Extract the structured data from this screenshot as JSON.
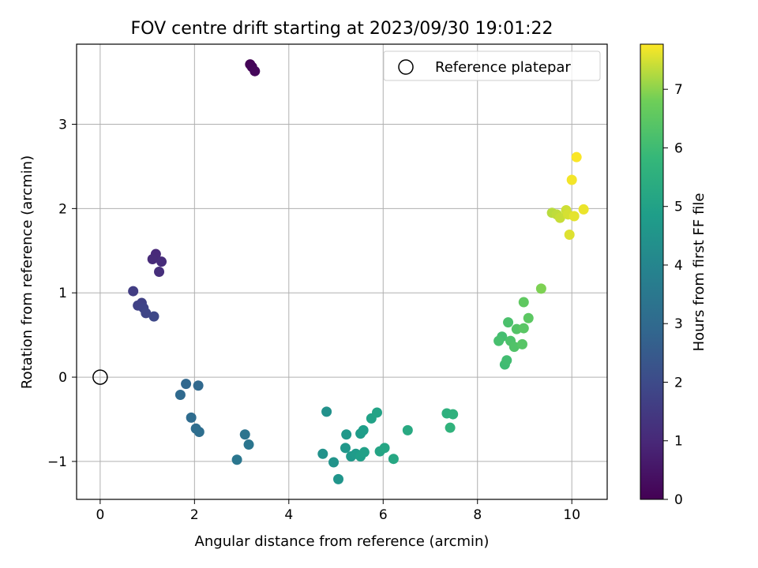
{
  "chart_data": {
    "type": "scatter",
    "title": "FOV centre drift starting at 2023/09/30 19:01:22",
    "xlabel": "Angular distance from reference (arcmin)",
    "ylabel": "Rotation from reference (arcmin)",
    "xlim": [
      -0.5,
      10.75
    ],
    "ylim": [
      -1.45,
      3.95
    ],
    "xticks": [
      0,
      2,
      4,
      6,
      8,
      10
    ],
    "yticks": [
      -1,
      0,
      1,
      2,
      3
    ],
    "xtick_labels": [
      "0",
      "2",
      "4",
      "6",
      "8",
      "10"
    ],
    "ytick_labels": [
      "−1",
      "0",
      "1",
      "2",
      "3"
    ],
    "grid": true,
    "legend": {
      "location": "top-right",
      "entries": [
        "Reference platepar"
      ]
    },
    "reference_point": {
      "x": 0,
      "y": 0
    },
    "colorbar": {
      "label": "Hours from first FF file",
      "colormap": "viridis",
      "range": [
        0,
        7.77
      ],
      "ticks": [
        0,
        1,
        2,
        3,
        4,
        5,
        6,
        7
      ],
      "tick_labels": [
        "0",
        "1",
        "2",
        "3",
        "4",
        "5",
        "6",
        "7"
      ]
    },
    "points": [
      {
        "x": 3.18,
        "y": 3.71,
        "hours": 0.05
      },
      {
        "x": 3.22,
        "y": 3.68,
        "hours": 0.1
      },
      {
        "x": 3.28,
        "y": 3.63,
        "hours": 0.15
      },
      {
        "x": 1.18,
        "y": 1.46,
        "hours": 1.0
      },
      {
        "x": 1.11,
        "y": 1.4,
        "hours": 1.05
      },
      {
        "x": 1.3,
        "y": 1.37,
        "hours": 1.1
      },
      {
        "x": 1.25,
        "y": 1.25,
        "hours": 1.15
      },
      {
        "x": 0.7,
        "y": 1.02,
        "hours": 1.6
      },
      {
        "x": 0.88,
        "y": 0.88,
        "hours": 1.7
      },
      {
        "x": 0.8,
        "y": 0.85,
        "hours": 1.75
      },
      {
        "x": 0.92,
        "y": 0.82,
        "hours": 1.8
      },
      {
        "x": 0.97,
        "y": 0.76,
        "hours": 1.85
      },
      {
        "x": 1.14,
        "y": 0.72,
        "hours": 1.9
      },
      {
        "x": 1.82,
        "y": -0.08,
        "hours": 2.9
      },
      {
        "x": 2.08,
        "y": -0.1,
        "hours": 2.95
      },
      {
        "x": 1.7,
        "y": -0.21,
        "hours": 3.0
      },
      {
        "x": 1.93,
        "y": -0.48,
        "hours": 3.05
      },
      {
        "x": 2.03,
        "y": -0.61,
        "hours": 3.1
      },
      {
        "x": 2.1,
        "y": -0.65,
        "hours": 3.15
      },
      {
        "x": 3.07,
        "y": -0.68,
        "hours": 3.35
      },
      {
        "x": 3.15,
        "y": -0.8,
        "hours": 3.4
      },
      {
        "x": 2.9,
        "y": -0.98,
        "hours": 3.45
      },
      {
        "x": 4.8,
        "y": -0.41,
        "hours": 4.4
      },
      {
        "x": 4.72,
        "y": -0.91,
        "hours": 4.45
      },
      {
        "x": 4.95,
        "y": -1.01,
        "hours": 4.5
      },
      {
        "x": 5.05,
        "y": -1.21,
        "hours": 4.55
      },
      {
        "x": 5.2,
        "y": -0.84,
        "hours": 4.6
      },
      {
        "x": 5.22,
        "y": -0.68,
        "hours": 4.65
      },
      {
        "x": 5.32,
        "y": -0.94,
        "hours": 4.7
      },
      {
        "x": 5.42,
        "y": -0.91,
        "hours": 4.75
      },
      {
        "x": 5.52,
        "y": -0.67,
        "hours": 4.8
      },
      {
        "x": 5.58,
        "y": -0.63,
        "hours": 4.85
      },
      {
        "x": 5.52,
        "y": -0.94,
        "hours": 4.9
      },
      {
        "x": 5.6,
        "y": -0.89,
        "hours": 4.95
      },
      {
        "x": 5.75,
        "y": -0.49,
        "hours": 5.0
      },
      {
        "x": 5.87,
        "y": -0.42,
        "hours": 5.05
      },
      {
        "x": 5.93,
        "y": -0.88,
        "hours": 5.1
      },
      {
        "x": 6.03,
        "y": -0.84,
        "hours": 5.15
      },
      {
        "x": 6.22,
        "y": -0.97,
        "hours": 5.2
      },
      {
        "x": 6.52,
        "y": -0.63,
        "hours": 5.3
      },
      {
        "x": 7.35,
        "y": -0.43,
        "hours": 5.55
      },
      {
        "x": 7.48,
        "y": -0.44,
        "hours": 5.6
      },
      {
        "x": 7.42,
        "y": -0.6,
        "hours": 5.65
      },
      {
        "x": 8.58,
        "y": 0.15,
        "hours": 6.0
      },
      {
        "x": 8.62,
        "y": 0.2,
        "hours": 6.05
      },
      {
        "x": 8.52,
        "y": 0.48,
        "hours": 6.1
      },
      {
        "x": 8.45,
        "y": 0.43,
        "hours": 6.15
      },
      {
        "x": 8.65,
        "y": 0.65,
        "hours": 6.2
      },
      {
        "x": 8.7,
        "y": 0.43,
        "hours": 6.25
      },
      {
        "x": 8.78,
        "y": 0.36,
        "hours": 6.3
      },
      {
        "x": 8.83,
        "y": 0.57,
        "hours": 6.35
      },
      {
        "x": 8.95,
        "y": 0.39,
        "hours": 6.4
      },
      {
        "x": 8.98,
        "y": 0.58,
        "hours": 6.45
      },
      {
        "x": 9.08,
        "y": 0.7,
        "hours": 6.5
      },
      {
        "x": 8.98,
        "y": 0.89,
        "hours": 6.55
      },
      {
        "x": 9.35,
        "y": 1.05,
        "hours": 6.9
      },
      {
        "x": 9.58,
        "y": 1.95,
        "hours": 7.3
      },
      {
        "x": 9.68,
        "y": 1.93,
        "hours": 7.35
      },
      {
        "x": 9.75,
        "y": 1.89,
        "hours": 7.4
      },
      {
        "x": 9.88,
        "y": 1.98,
        "hours": 7.45
      },
      {
        "x": 9.92,
        "y": 1.93,
        "hours": 7.5
      },
      {
        "x": 9.95,
        "y": 1.69,
        "hours": 7.55
      },
      {
        "x": 10.05,
        "y": 1.91,
        "hours": 7.6
      },
      {
        "x": 10.25,
        "y": 1.99,
        "hours": 7.65
      },
      {
        "x": 10.0,
        "y": 2.34,
        "hours": 7.7
      },
      {
        "x": 10.1,
        "y": 2.61,
        "hours": 7.75
      }
    ]
  }
}
